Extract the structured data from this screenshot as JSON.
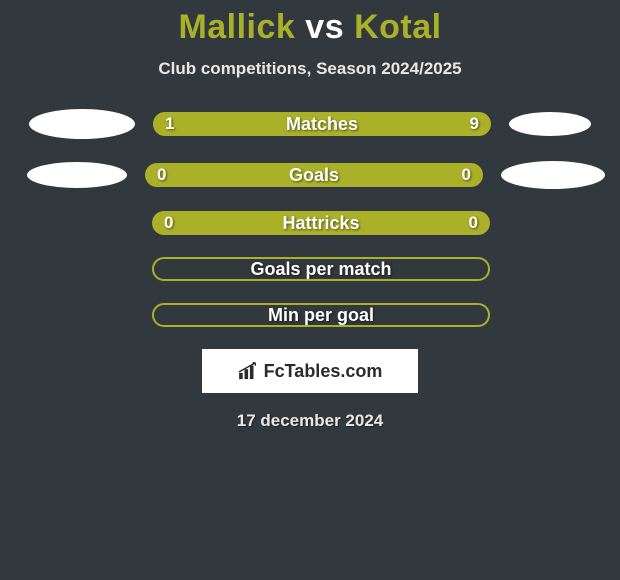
{
  "header": {
    "title_player1": "Mallick",
    "title_vs": "vs",
    "title_player2": "Kotal",
    "title_color_p1": "#aab028",
    "title_color_vs": "#ffffff",
    "title_color_p2": "#aab028",
    "subtitle": "Club competitions, Season 2024/2025"
  },
  "bars": [
    {
      "label": "Matches",
      "left_value": "1",
      "right_value": "9",
      "left_pct": 18,
      "right_pct": 82,
      "left_color": "#aab028",
      "right_color": "#aab028",
      "bg_color": "#aab028",
      "show_oval_left": true,
      "show_oval_right": true,
      "oval_left_class": "oval-left-1",
      "oval_right_class": "oval-right-1"
    },
    {
      "label": "Goals",
      "left_value": "0",
      "right_value": "0",
      "left_pct": 50,
      "right_pct": 50,
      "left_color": "#aab028",
      "right_color": "#aab028",
      "bg_color": "#aab028",
      "show_oval_left": true,
      "show_oval_right": true,
      "oval_left_class": "oval-left-2",
      "oval_right_class": "oval-right-2"
    },
    {
      "label": "Hattricks",
      "left_value": "0",
      "right_value": "0",
      "left_pct": 50,
      "right_pct": 50,
      "left_color": "#aab028",
      "right_color": "#aab028",
      "bg_color": "#aab028",
      "show_oval_left": false,
      "show_oval_right": false
    },
    {
      "label": "Goals per match",
      "left_value": "",
      "right_value": "",
      "left_pct": 0,
      "right_pct": 0,
      "left_color": "#aab028",
      "right_color": "#aab028",
      "bg_color": "#aab028",
      "outlined": true,
      "show_oval_left": false,
      "show_oval_right": false
    },
    {
      "label": "Min per goal",
      "left_value": "",
      "right_value": "",
      "left_pct": 0,
      "right_pct": 0,
      "left_color": "#aab028",
      "right_color": "#aab028",
      "bg_color": "#aab028",
      "outlined": true,
      "show_oval_left": false,
      "show_oval_right": false
    }
  ],
  "footer": {
    "logo_text": "FcTables.com",
    "logo_icon_color": "#2b2b2b",
    "date": "17 december 2024"
  },
  "style": {
    "background": "#31383e",
    "text_shadow": "1px 1px 2px rgba(0,0,0,0.55)"
  }
}
